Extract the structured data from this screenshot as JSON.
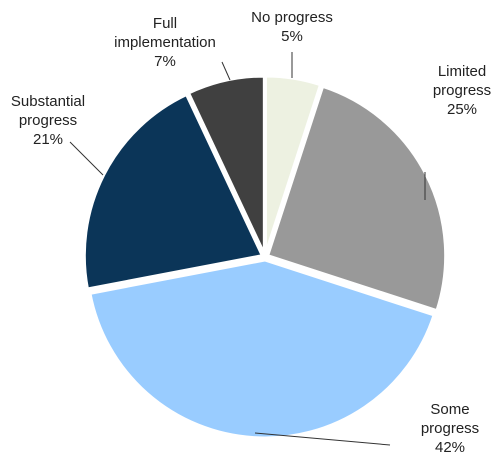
{
  "chart_data": {
    "type": "pie",
    "categories": [
      "No progress",
      "Limited progress",
      "Some progress",
      "Substantial progress",
      "Full implementation"
    ],
    "values": [
      5,
      25,
      42,
      21,
      7
    ],
    "value_labels": [
      "5%",
      "25%",
      "42%",
      "21%",
      "7%"
    ],
    "colors": [
      "#edf1e1",
      "#999999",
      "#99ccff",
      "#0b3558",
      "#404040"
    ]
  }
}
